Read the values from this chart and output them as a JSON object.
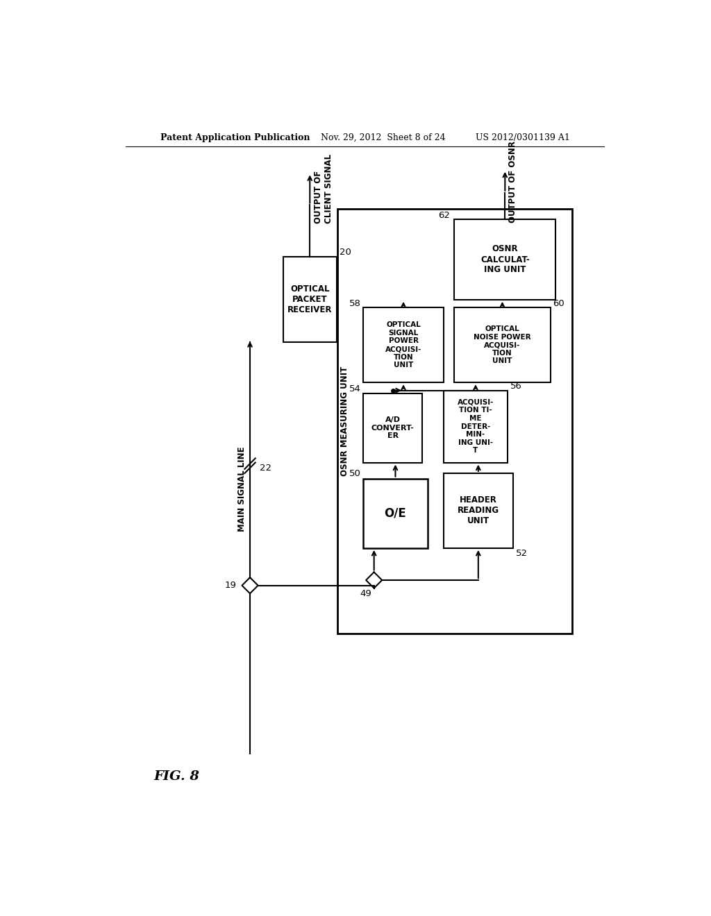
{
  "bg_color": "#ffffff",
  "header_text_left": "Patent Application Publication",
  "header_text_mid": "Nov. 29, 2012  Sheet 8 of 24",
  "header_text_right": "US 2012/0301139 A1",
  "fig_label": "FIG. 8",
  "main_signal_line_label": "MAIN SIGNAL LINE",
  "osnr_measuring_unit_label": "OSNR MEASURING UNIT",
  "optical_packet_receiver_text": "OPTICAL\nPACKET\nRECEIVER",
  "oe_text": "O/E",
  "ad_converter_text": "A/D\nCONVERT-\nER",
  "header_reading_unit_text": "HEADER\nREADING\nUNIT",
  "acquisition_time_text": "ACQUISI-\nTION TI-\nME\nDETER-\nMIN-\nING UNI-\nT",
  "optical_signal_power_text": "OPTICAL\nSIGNAL\nPOWER\nACQUISI-\nTION\nUNIT",
  "optical_noise_power_text": "OPTICAL\nNOISE POWER\nACQUISI-\nTION\nUNIT",
  "osnr_calculating_text": "OSNR\nCALCULAT-\nING UNIT",
  "output_client_signal_text": "OUTPUT OF\nCLIENT SIGNAL",
  "output_osnr_text": "OUTPUT OF OSNR",
  "label_20": "20",
  "label_22": "22",
  "label_19": "19",
  "label_49": "49",
  "label_50": "50",
  "label_52": "52",
  "label_54": "54",
  "label_56": "56",
  "label_58": "58",
  "label_60": "60",
  "label_62": "62"
}
